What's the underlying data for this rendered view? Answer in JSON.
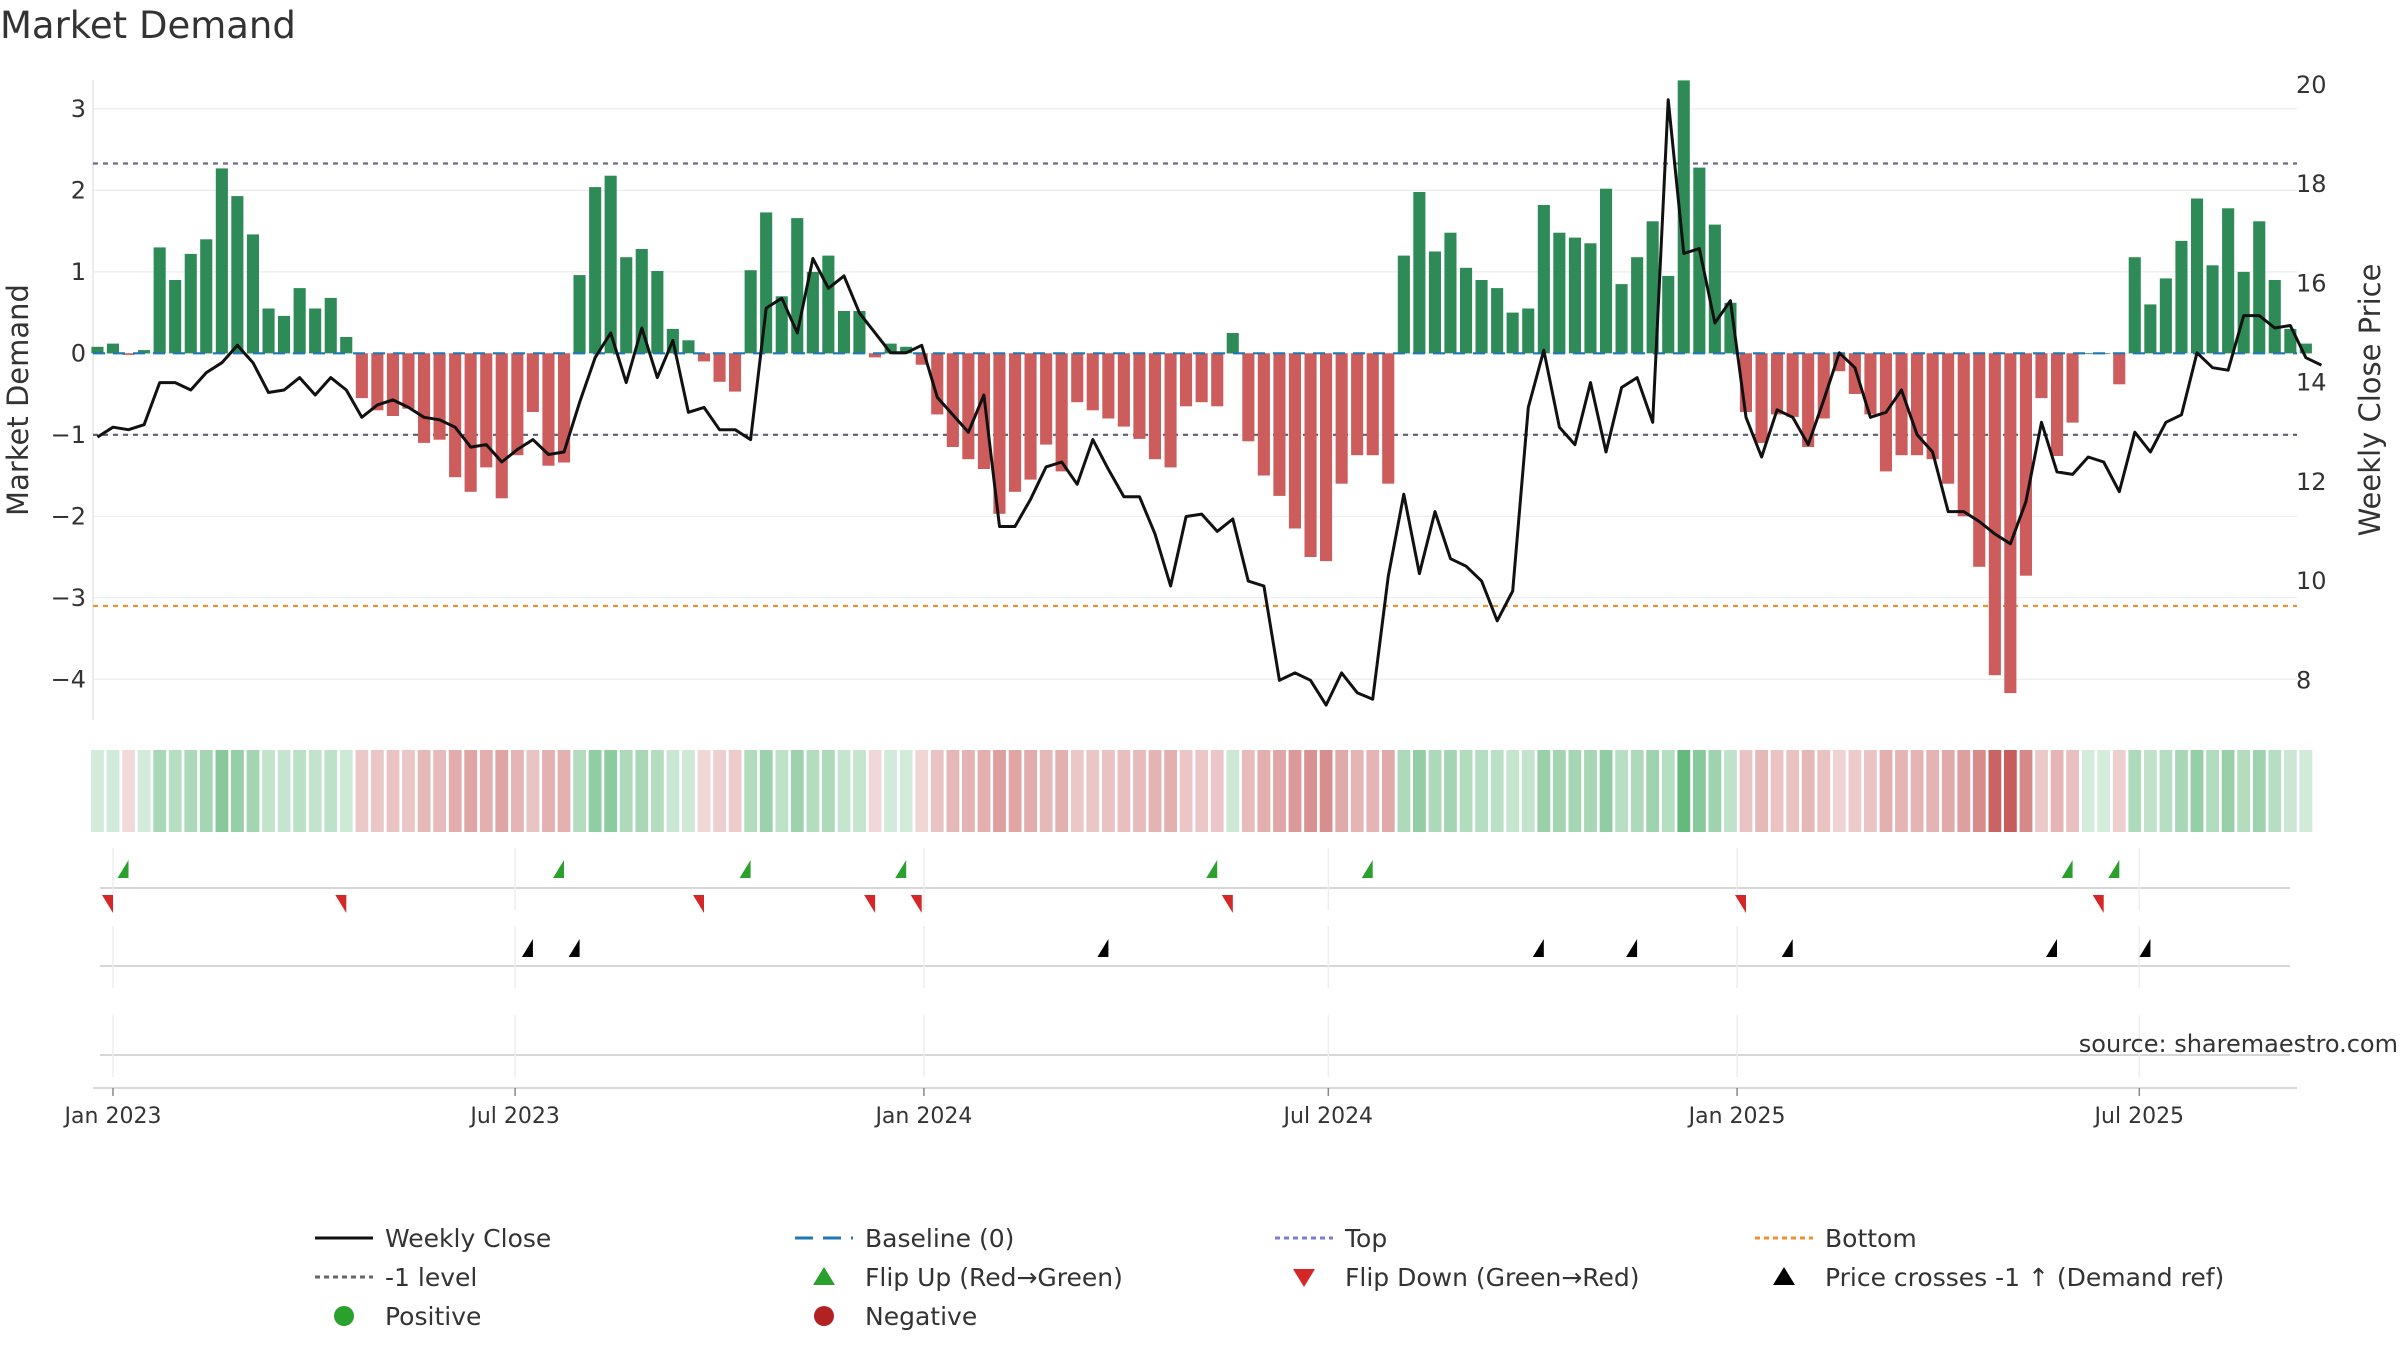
{
  "chart_data": {
    "type": "bar",
    "title": "Market Demand",
    "ylabel_left": "Market Demand",
    "ylabel_right": "Weekly Close Price",
    "ylim_left": [
      -4.5,
      3.6
    ],
    "ylim_right": [
      7.2,
      20.5
    ],
    "yticks_left": [
      "3",
      "2",
      "1",
      "0",
      "−1",
      "−2",
      "−3",
      "−4"
    ],
    "yticks_left_values": [
      3,
      2,
      1,
      0,
      -1,
      -2,
      -3,
      -4
    ],
    "yticks_right": [
      "20",
      "18",
      "16",
      "14",
      "12",
      "10",
      "8"
    ],
    "yticks_right_values": [
      20,
      18,
      16,
      14,
      12,
      10,
      8
    ],
    "x_start": "2022-12-23",
    "x_end": "2025-09-10",
    "xticks": [
      {
        "label": "Jan 2023",
        "date": "2023-01-01"
      },
      {
        "label": "Jul 2023",
        "date": "2023-07-01"
      },
      {
        "label": "Jan 2024",
        "date": "2024-01-01"
      },
      {
        "label": "Jul 2024",
        "date": "2024-07-01"
      },
      {
        "label": "Jan 2025",
        "date": "2025-01-01"
      },
      {
        "label": "Jul 2025",
        "date": "2025-07-01"
      }
    ],
    "first_week": "2022-12-25",
    "demand": [
      0.08,
      0.12,
      -0.02,
      0.04,
      1.3,
      0.9,
      1.22,
      1.4,
      2.27,
      1.93,
      1.46,
      0.55,
      0.46,
      0.8,
      0.55,
      0.68,
      0.2,
      -0.55,
      -0.7,
      -0.77,
      -0.68,
      -1.1,
      -1.06,
      -1.52,
      -1.7,
      -1.4,
      -1.78,
      -1.25,
      -0.72,
      -1.38,
      -1.34,
      0.96,
      2.04,
      2.18,
      1.18,
      1.28,
      1.01,
      0.3,
      0.16,
      -0.1,
      -0.35,
      -0.47,
      1.02,
      1.73,
      0.7,
      1.66,
      1.0,
      1.2,
      0.52,
      0.52,
      -0.05,
      0.12,
      0.08,
      -0.14,
      -0.75,
      -1.15,
      -1.3,
      -1.42,
      -1.97,
      -1.7,
      -1.55,
      -1.12,
      -1.45,
      -0.6,
      -0.7,
      -0.8,
      -0.9,
      -1.05,
      -1.3,
      -1.4,
      -0.65,
      -0.6,
      -0.65,
      0.25,
      -1.08,
      -1.5,
      -1.75,
      -2.15,
      -2.5,
      -2.55,
      -1.6,
      -1.25,
      -1.25,
      -1.6,
      1.2,
      1.98,
      1.25,
      1.48,
      1.05,
      0.9,
      0.8,
      0.5,
      0.55,
      1.82,
      1.48,
      1.42,
      1.35,
      2.02,
      0.85,
      1.18,
      1.62,
      0.95,
      3.35,
      2.28,
      1.58,
      0.62,
      -0.72,
      -1.1,
      -0.75,
      -0.78,
      -1.15,
      -0.8,
      -0.22,
      -0.5,
      -0.75,
      -1.45,
      -1.25,
      -1.25,
      -1.3,
      -1.6,
      -2.0,
      -2.62,
      -3.95,
      -4.17,
      -2.73,
      -0.55,
      -1.26,
      -0.85,
      0.0,
      0.0,
      -0.38,
      1.18,
      0.6,
      0.92,
      1.38,
      1.9,
      1.08,
      1.78,
      1.0,
      1.62,
      0.9,
      0.3,
      0.12
    ],
    "close": [
      12.9,
      13.1,
      13.05,
      13.15,
      14.0,
      14.0,
      13.85,
      14.2,
      14.4,
      14.75,
      14.4,
      13.8,
      13.85,
      14.1,
      13.75,
      14.1,
      13.85,
      13.3,
      13.55,
      13.65,
      13.5,
      13.3,
      13.25,
      13.1,
      12.7,
      12.75,
      12.4,
      12.65,
      12.85,
      12.55,
      12.6,
      13.6,
      14.5,
      15.0,
      14.0,
      15.1,
      14.1,
      14.85,
      13.4,
      13.5,
      13.05,
      13.05,
      12.85,
      15.5,
      15.7,
      15.0,
      16.5,
      15.9,
      16.15,
      15.4,
      15.0,
      14.6,
      14.6,
      14.75,
      13.7,
      13.35,
      13.0,
      13.75,
      11.1,
      11.1,
      11.65,
      12.3,
      12.4,
      11.95,
      12.85,
      12.25,
      11.7,
      11.7,
      10.95,
      9.9,
      11.3,
      11.35,
      11.0,
      11.25,
      10.0,
      9.9,
      8.0,
      8.15,
      8.0,
      7.5,
      8.15,
      7.75,
      7.62,
      10.1,
      11.75,
      10.15,
      11.4,
      10.45,
      10.3,
      10.0,
      9.2,
      9.8,
      13.5,
      14.65,
      13.1,
      12.75,
      14.0,
      12.6,
      13.9,
      14.1,
      13.2,
      19.7,
      16.6,
      16.7,
      15.2,
      15.65,
      13.3,
      12.5,
      13.45,
      13.3,
      12.75,
      13.65,
      14.6,
      14.3,
      13.3,
      13.4,
      13.85,
      12.95,
      12.6,
      11.4,
      11.4,
      11.2,
      10.95,
      10.75,
      11.6,
      13.2,
      12.2,
      12.15,
      12.5,
      12.4,
      11.8,
      13.0,
      12.6,
      13.2,
      13.35,
      14.6,
      14.3,
      14.25,
      15.35,
      15.35,
      15.1,
      15.15,
      14.5,
      14.35
    ],
    "top_level": 2.33,
    "minus1_level": -1.0,
    "bottom_level": -3.1,
    "flip_up_weeks": [
      2,
      30,
      42,
      52,
      72,
      82,
      127,
      130
    ],
    "flip_down_weeks": [
      1,
      16,
      39,
      50,
      53,
      73,
      106,
      129
    ],
    "price_cross_weeks": [
      28,
      31,
      65,
      93,
      99,
      109,
      126,
      132
    ],
    "source": "source: sharemaestro.com",
    "legend": [
      {
        "label": "Weekly Close",
        "symbol": "line-black"
      },
      {
        "label": "Baseline (0)",
        "symbol": "dash-blue"
      },
      {
        "label": "Top",
        "symbol": "dot-purple"
      },
      {
        "label": "Bottom",
        "symbol": "dot-orange"
      },
      {
        "label": "-1 level",
        "symbol": "dot-gray"
      },
      {
        "label": "Flip Up (Red→Green)",
        "symbol": "tri-up-green"
      },
      {
        "label": "Flip Down (Green→Red)",
        "symbol": "tri-down-red"
      },
      {
        "label": "Price crosses -1 ↑ (Demand ref)",
        "symbol": "tri-up-black"
      },
      {
        "label": "Positive",
        "symbol": "circle-green"
      },
      {
        "label": "Negative",
        "symbol": "circle-red"
      }
    ]
  },
  "colors": {
    "positive": "#2e8b57",
    "negative": "#cd5c5c",
    "close_line": "#111111",
    "baseline": "#1f77b4",
    "top": "#7b7bd0",
    "bottom": "#f28e2b",
    "minus1": "#666666",
    "flip_up": "#2ca02c",
    "flip_down": "#d62728",
    "cross": "#000000",
    "positive_dot": "#2ca02c",
    "negative_dot": "#b22222"
  }
}
